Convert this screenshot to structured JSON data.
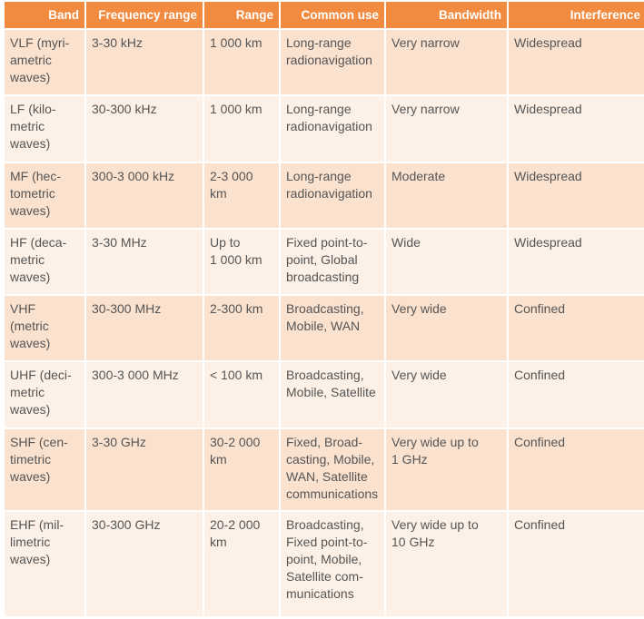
{
  "table": {
    "header": [
      "Band",
      "Frequency range",
      "Range",
      "Common use",
      "Bandwidth",
      "Interference"
    ],
    "rows": [
      [
        "VLF (myri-\nametric\nwaves)",
        "3-30 kHz",
        "1 000 km",
        "Long-range\nradionavigation",
        "Very narrow",
        "Widespread"
      ],
      [
        "LF (kilo-\nmetric\nwaves)",
        "30-300 kHz",
        "1 000 km",
        "Long-range\nradionavigation",
        "Very narrow",
        "Widespread"
      ],
      [
        "MF (hec-\ntometric\nwaves)",
        "300-3 000 kHz",
        "2-3 000 km",
        "Long-range\nradionavigation",
        "Moderate",
        "Widespread"
      ],
      [
        "HF (deca-\nmetric\nwaves)",
        "3-30 MHz",
        "Up to\n1 000 km",
        "Fixed point-to-\npoint, Global\nbroadcasting",
        "Wide",
        "Widespread"
      ],
      [
        "VHF\n(metric\nwaves)",
        "30-300 MHz",
        "2-300 km",
        "Broadcasting,\nMobile, WAN",
        "Very wide",
        "Confined"
      ],
      [
        "UHF (deci-\nmetric\nwaves)",
        "300-3 000 MHz",
        "< 100 km",
        "Broadcasting,\nMobile, Satellite",
        "Very wide",
        "Confined"
      ],
      [
        "SHF (cen-\ntimetric\nwaves)",
        "3-30 GHz",
        "30-2 000\nkm",
        "Fixed, Broad-\ncasting, Mobile,\nWAN, Satellite\ncommunications",
        "Very wide up to\n1 GHz",
        "Confined"
      ],
      [
        "EHF (mil-\nlimetric\nwaves)",
        "30-300 GHz",
        "20-2 000\nkm",
        "Broadcasting,\nFixed point-to-\npoint, Mobile,\nSatellite com-\nmunications",
        "Very wide up to\n10 GHz",
        "Confined"
      ]
    ]
  }
}
